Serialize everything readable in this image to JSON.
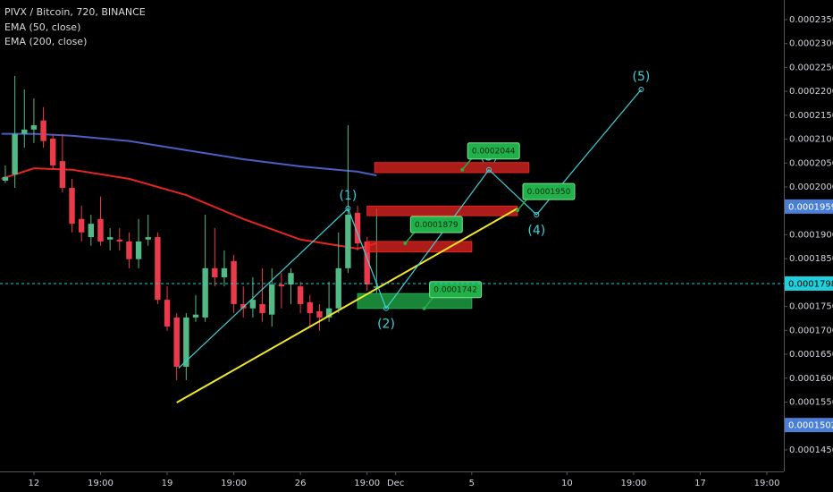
{
  "chart_data": {
    "type": "candlestick",
    "title": "PIVX / Bitcoin, 720, BINANCE",
    "up_color": "#53b987",
    "down_color": "#eb3b4a",
    "x": [
      -1.5,
      -1,
      -0.5,
      0,
      0.5,
      1,
      1.5,
      2,
      2.5,
      3,
      3.5,
      4,
      4.5,
      5,
      5.5,
      6,
      6.5,
      7,
      7.5,
      8,
      8.5,
      9,
      9.5,
      10,
      10.5,
      11,
      11.5,
      12,
      12.5,
      13,
      13.5,
      14,
      14.5,
      15,
      15.5,
      16,
      16.5,
      17,
      17.5,
      18
    ],
    "open": [
      0.0002013,
      0.0002026,
      0.0002111,
      0.000212,
      0.0002139,
      0.0002101,
      0.0002054,
      0.0001998,
      0.0001933,
      0.0001895,
      0.0001933,
      0.000189,
      0.000189,
      0.0001886,
      0.0001849,
      0.000189,
      0.0001895,
      0.0001764,
      0.0001727,
      0.0001624,
      0.0001727,
      0.0001727,
      0.000183,
      0.0001811,
      0.0001845,
      0.0001755,
      0.0001746,
      0.0001755,
      0.0001733,
      0.0001796,
      0.0001796,
      0.0001792,
      0.0001759,
      0.000174,
      0.0001727,
      0.0001746,
      0.000183,
      0.0001946,
      0.0001886,
      0.0001789
    ],
    "high": [
      0.0002045,
      0.0002232,
      0.0002204,
      0.0002185,
      0.0002167,
      0.0002111,
      0.0002111,
      0.0002017,
      0.0001961,
      0.0001942,
      0.000198,
      0.0001914,
      0.0001914,
      0.0001905,
      0.0001933,
      0.0001942,
      0.0001905,
      0.0001792,
      0.0001736,
      0.0001736,
      0.0001774,
      0.0001942,
      0.0001914,
      0.0001867,
      0.0001858,
      0.0001792,
      0.0001811,
      0.000183,
      0.000183,
      0.000182,
      0.000183,
      0.0001802,
      0.0001774,
      0.0001755,
      0.0001802,
      0.0001905,
      0.0002129,
      0.0001961,
      0.0001895,
      0.0001955
    ],
    "low": [
      0.0002008,
      0.0001998,
      0.0002082,
      0.0002092,
      0.0002082,
      0.0002036,
      0.0001989,
      0.0001905,
      0.0001886,
      0.0001877,
      0.0001877,
      0.0001867,
      0.0001867,
      0.000183,
      0.000183,
      0.0001877,
      0.0001755,
      0.0001699,
      0.0001596,
      0.0001596,
      0.0001718,
      0.0001718,
      0.0001792,
      0.0001792,
      0.0001736,
      0.0001727,
      0.0001727,
      0.0001718,
      0.0001708,
      0.0001746,
      0.0001755,
      0.0001736,
      0.0001708,
      0.0001699,
      0.0001718,
      0.0001736,
      0.000182,
      0.0001867,
      0.0001783,
      0.0001777
    ],
    "close": [
      0.0002021,
      0.0002111,
      0.000212,
      0.0002129,
      0.0002096,
      0.0002045,
      0.0001998,
      0.0001923,
      0.0001905,
      0.0001923,
      0.0001886,
      0.0001895,
      0.0001886,
      0.0001849,
      0.0001886,
      0.0001895,
      0.0001764,
      0.0001708,
      0.0001624,
      0.0001727,
      0.0001733,
      0.000183,
      0.0001811,
      0.000183,
      0.0001755,
      0.0001746,
      0.0001764,
      0.0001736,
      0.0001796,
      0.0001792,
      0.000182,
      0.0001755,
      0.0001736,
      0.0001727,
      0.0001746,
      0.000183,
      0.0001942,
      0.0001882,
      0.0001796,
      0.0001792
    ],
    "series": [
      {
        "name": "EMA (50, close)",
        "color": "#e52521",
        "x": [
          -1.7,
          0,
          2,
          5,
          8,
          11,
          14,
          17,
          18
        ],
        "values": [
          0.0002017,
          0.0002039,
          0.0002036,
          0.0002017,
          0.0001983,
          0.0001933,
          0.000189,
          0.0001871,
          0.0001882
        ]
      },
      {
        "name": "EMA (200, close)",
        "color": "#4b5ec2",
        "x": [
          -1.7,
          0,
          2,
          5,
          8,
          11,
          14,
          17,
          18
        ],
        "values": [
          0.0002111,
          0.0002111,
          0.0002107,
          0.0002096,
          0.0002077,
          0.0002058,
          0.0002043,
          0.0002032,
          0.0002024
        ]
      }
    ],
    "xlim": [
      -1.78,
      39.39
    ],
    "xticks": [
      {
        "value": 0,
        "label": "12"
      },
      {
        "value": 3.5,
        "label": "19:00"
      },
      {
        "value": 7,
        "label": "19"
      },
      {
        "value": 10.5,
        "label": "19:00"
      },
      {
        "value": 14,
        "label": "26"
      },
      {
        "value": 17.5,
        "label": "19:00"
      },
      {
        "value": 19,
        "label": "Dec"
      },
      {
        "value": 23,
        "label": "5"
      },
      {
        "value": 28,
        "label": "10"
      },
      {
        "value": 31.5,
        "label": "19:00"
      },
      {
        "value": 35,
        "label": "17"
      },
      {
        "value": 38.5,
        "label": "19:00"
      }
    ],
    "ylim": [
      0.0001405,
      0.0002391
    ],
    "yticks": [
      {
        "value": 0.000235,
        "label": "0.0002350"
      },
      {
        "value": 0.00023,
        "label": "0.0002300"
      },
      {
        "value": 0.000225,
        "label": "0.0002250"
      },
      {
        "value": 0.00022,
        "label": "0.0002200"
      },
      {
        "value": 0.000215,
        "label": "0.0002150"
      },
      {
        "value": 0.00021,
        "label": "0.0002100"
      },
      {
        "value": 0.000205,
        "label": "0.0002050"
      },
      {
        "value": 0.0002,
        "label": "0.0002000"
      },
      {
        "value": 0.000195,
        "label": "0.0001950"
      },
      {
        "value": 0.00019,
        "label": "0.0001900"
      },
      {
        "value": 0.000185,
        "label": "0.0001850"
      },
      {
        "value": 0.00018,
        "label": "0.0001800"
      },
      {
        "value": 0.000175,
        "label": "0.0001750"
      },
      {
        "value": 0.00017,
        "label": "0.0001700"
      },
      {
        "value": 0.000165,
        "label": "0.0001650"
      },
      {
        "value": 0.00016,
        "label": "0.0001600"
      },
      {
        "value": 0.000155,
        "label": "0.0001550"
      },
      {
        "value": 0.00015,
        "label": "0.0001500"
      },
      {
        "value": 0.000145,
        "label": "0.0001450"
      }
    ],
    "trendline": {
      "color": "#f0e62a",
      "x": [
        7.5,
        25.4
      ],
      "y": [
        0.0001549,
        0.0001955
      ]
    },
    "wave": {
      "color": "#3fd0d8",
      "x": [
        7.6,
        16.5,
        18.5,
        23.9,
        26.4,
        31.9
      ],
      "y": [
        0.0001621,
        0.0001955,
        0.0001746,
        0.0002036,
        0.0001942,
        0.0002204
      ],
      "labels": [
        null,
        "(1)",
        "(2)",
        "(3)",
        "(4)",
        "(5)"
      ]
    },
    "boxes": [
      {
        "color": "#e52521",
        "x": [
          17.9,
          26.0
        ],
        "y": [
          0.0002051,
          0.000203
        ]
      },
      {
        "color": "#e52521",
        "x": [
          17.5,
          25.4
        ],
        "y": [
          0.000196,
          0.000194
        ]
      },
      {
        "color": "#e52521",
        "x": [
          17.5,
          23.0
        ],
        "y": [
          0.0001886,
          0.0001864
        ]
      },
      {
        "color": "#21b14b",
        "x": [
          17.0,
          23.0
        ],
        "y": [
          0.0001777,
          0.0001746
        ]
      }
    ],
    "callouts": [
      {
        "label": "0.0002044",
        "x": 22.5,
        "y": 0.0002036
      },
      {
        "label": "0.0001879",
        "x": 19.5,
        "y": 0.0001882
      },
      {
        "label": "0.0001950",
        "x": 25.4,
        "y": 0.0001951
      },
      {
        "label": "0.0001742",
        "x": 20.5,
        "y": 0.0001746
      }
    ],
    "callout_color": "#21b14b",
    "price_markers": [
      {
        "value": 0.0001959,
        "label": "0.0001959",
        "color": "#4a7fd4",
        "text_color": "#ffffff",
        "line": false
      },
      {
        "value": 0.0001798,
        "label": "0.0001798",
        "color": "#1fd0dc",
        "text_color": "#000000",
        "line": true
      },
      {
        "value": 0.0001502,
        "label": "0.0001502",
        "color": "#4a7fd4",
        "text_color": "#ffffff",
        "line": false
      }
    ]
  }
}
